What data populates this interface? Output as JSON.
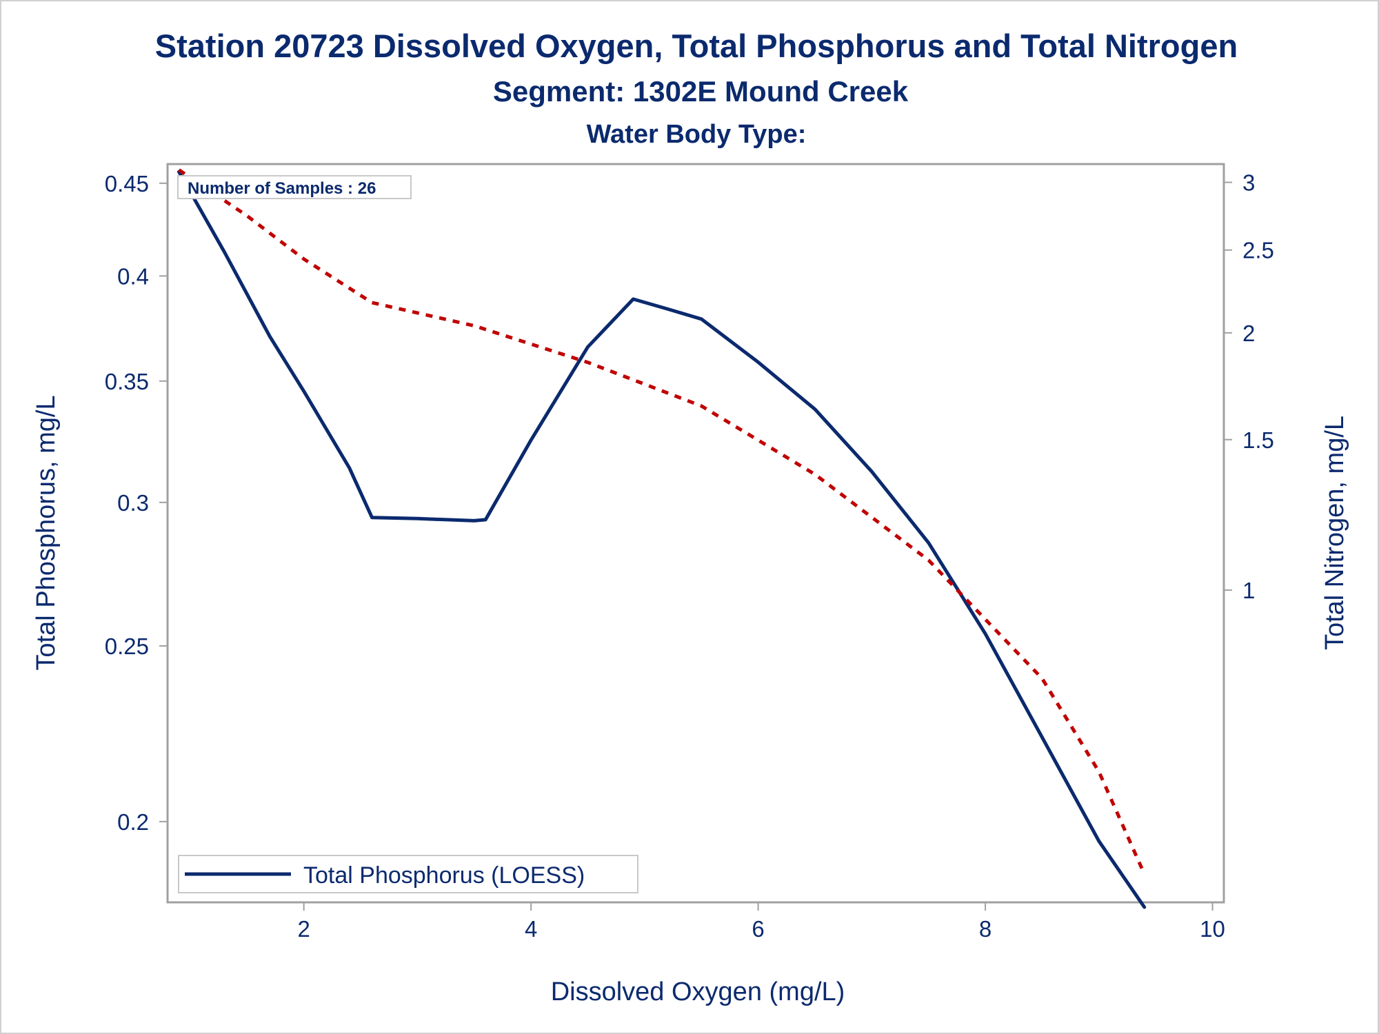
{
  "titles": {
    "line1": "Station 20723  Dissolved Oxygen, Total Phosphorus and Total Nitrogen",
    "line2": "Segment: 1302E  Mound Creek",
    "line3": "Water Body Type:"
  },
  "inset_label": "Number of Samples : 26",
  "legend_label": "Total Phosphorus (LOESS)",
  "colors": {
    "text": "#0b2a6e",
    "phosphorus": "#0b2a6e",
    "nitrogen": "#c00000",
    "frame": "#a0a0a0"
  },
  "chart_data": {
    "type": "line",
    "title": "Station 20723  Dissolved Oxygen, Total Phosphorus and Total Nitrogen",
    "subtitle": "Segment: 1302E  Mound Creek",
    "xlabel": "Dissolved Oxygen (mg/L)",
    "ylabel": "Total Phosphorus, mg/L",
    "y2label": "Total Nitrogen, mg/L",
    "xlim": [
      0.8,
      10.1
    ],
    "ylim": [
      0.1805,
      0.4611
    ],
    "y2lim": [
      0.4312,
      3.1516
    ],
    "y_log_scale": true,
    "y2_log_scale": true,
    "x_ticks": [
      "2",
      "4",
      "6",
      "8",
      "10"
    ],
    "y_ticks": [
      "0.2",
      "0.25",
      "0.3",
      "0.35",
      "0.4",
      "0.45"
    ],
    "y2_ticks": [
      "1",
      "1.5",
      "2",
      "2.5",
      "3"
    ],
    "legend_position": "bottom-left",
    "series": [
      {
        "name": "Total Phosphorus (LOESS)",
        "axis": "left",
        "style": "solid",
        "x": [
          0.9,
          1.3,
          1.7,
          2.0,
          2.4,
          2.6,
          3.0,
          3.5,
          3.6,
          4.0,
          4.5,
          4.9,
          5.2,
          5.5,
          6.0,
          6.5,
          7.0,
          7.5,
          8.0,
          8.5,
          9.0,
          9.4
        ],
        "y": [
          0.4566,
          0.4124,
          0.3704,
          0.3455,
          0.3135,
          0.2943,
          0.2939,
          0.2931,
          0.2935,
          0.3247,
          0.3655,
          0.3884,
          0.3836,
          0.3787,
          0.3585,
          0.3377,
          0.312,
          0.285,
          0.2539,
          0.2226,
          0.1951,
          0.1794
        ]
      },
      {
        "axis": "right",
        "style": "dashed",
        "x": [
          0.9,
          1.5,
          2.0,
          2.6,
          3.5,
          4.5,
          5.5,
          6.5,
          7.5,
          8.5,
          9.0,
          9.4
        ],
        "y": [
          3.1025,
          2.7414,
          2.4401,
          2.1696,
          2.0383,
          1.8471,
          1.6425,
          1.3659,
          1.084,
          0.7882,
          0.6131,
          0.4653
        ]
      }
    ]
  }
}
